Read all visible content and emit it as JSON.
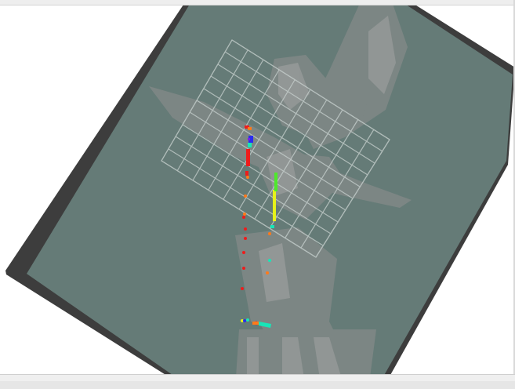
{
  "viewer": {
    "background_color": "#ffffff",
    "map_border_color": "#3d3d3d",
    "map_fill_color": "#657b77",
    "obstacle_color": "#8e8e8e",
    "grid_color": "#c9d2d0",
    "grid_cells": 10
  },
  "scan_colors": {
    "red": "#ee1c1c",
    "orange": "#ff7a1a",
    "yellow": "#e6f21a",
    "green": "#4ee92b",
    "cyan": "#17e6b8",
    "blue": "#2a2cf0",
    "violet": "#7a1fe8"
  }
}
